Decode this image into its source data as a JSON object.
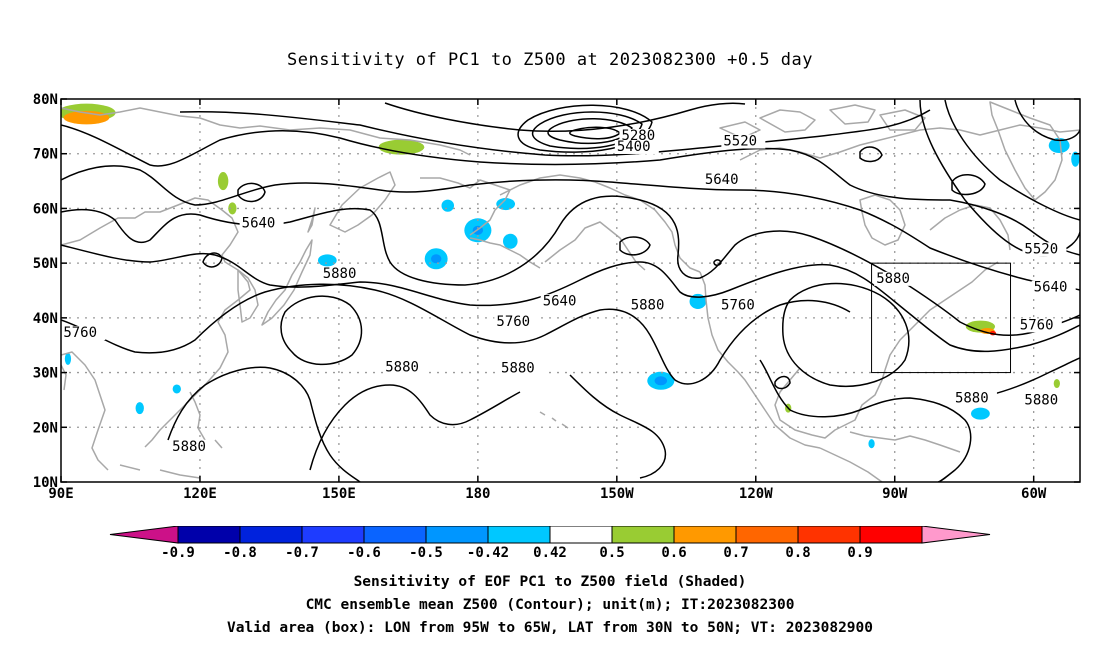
{
  "title": "Sensitivity of PC1 to Z500 at 2023082300 +0.5 day",
  "map": {
    "lon_range": [
      90,
      310
    ],
    "lat_range": [
      10,
      80
    ],
    "lat_ticks": [
      {
        "value": 80,
        "label": "80N"
      },
      {
        "value": 70,
        "label": "70N"
      },
      {
        "value": 60,
        "label": "60N"
      },
      {
        "value": 50,
        "label": "50N"
      },
      {
        "value": 40,
        "label": "40N"
      },
      {
        "value": 30,
        "label": "30N"
      },
      {
        "value": 20,
        "label": "20N"
      },
      {
        "value": 10,
        "label": "10N"
      }
    ],
    "lon_ticks": [
      {
        "value": 90,
        "label": "90E"
      },
      {
        "value": 120,
        "label": "120E"
      },
      {
        "value": 150,
        "label": "150E"
      },
      {
        "value": 180,
        "label": "180"
      },
      {
        "value": 210,
        "label": "150W"
      },
      {
        "value": 240,
        "label": "120W"
      },
      {
        "value": 270,
        "label": "90W"
      },
      {
        "value": 300,
        "label": "60W"
      }
    ],
    "valid_box": {
      "lon_min": 265,
      "lon_max": 295,
      "lat_min": 30,
      "lat_max": 50
    },
    "colors": {
      "contour": "#000000",
      "coast": "#a8a8a8",
      "grid": "#9a9a9a",
      "green": "#99cc33",
      "orange": "#ff9900",
      "light_blue": "#00c8ff",
      "mid_blue": "#0096ff",
      "red": "#ff1a00"
    },
    "contour_labels": [
      {
        "text": "5280",
        "lon": 211,
        "lat": 72.5
      },
      {
        "text": "5400",
        "lon": 210,
        "lat": 70.5
      },
      {
        "text": "5520",
        "lon": 233,
        "lat": 71.5
      },
      {
        "text": "5640",
        "lon": 229,
        "lat": 64.5
      },
      {
        "text": "5640",
        "lon": 129,
        "lat": 56.5
      },
      {
        "text": "5880",
        "lon": 146.5,
        "lat": 47.3
      },
      {
        "text": "5640",
        "lon": 194,
        "lat": 42.3
      },
      {
        "text": "5880",
        "lon": 213,
        "lat": 41.5
      },
      {
        "text": "5760",
        "lon": 232.5,
        "lat": 41.5
      },
      {
        "text": "5760",
        "lon": 90.5,
        "lat": 36.5
      },
      {
        "text": "5760",
        "lon": 184,
        "lat": 38.5
      },
      {
        "text": "5880",
        "lon": 160,
        "lat": 30.2
      },
      {
        "text": "5880",
        "lon": 185,
        "lat": 30.0
      },
      {
        "text": "5880",
        "lon": 266,
        "lat": 46.4
      },
      {
        "text": "5520",
        "lon": 298,
        "lat": 51.8
      },
      {
        "text": "5640",
        "lon": 300,
        "lat": 44.8
      },
      {
        "text": "5760",
        "lon": 297,
        "lat": 37.9
      },
      {
        "text": "5880",
        "lon": 283,
        "lat": 24.5
      },
      {
        "text": "5880",
        "lon": 298,
        "lat": 24.2
      },
      {
        "text": "5880",
        "lon": 114,
        "lat": 15.7
      }
    ],
    "shaded_patches": [
      {
        "level": "green",
        "lon": 95.5,
        "lat": 77.5,
        "rx": 28,
        "ry": 6
      },
      {
        "level": "orange",
        "lon": 95.5,
        "lat": 76.6,
        "rx": 22,
        "ry": 4.5
      },
      {
        "level": "green",
        "lon": 163.5,
        "lat": 71.2,
        "rx": 22,
        "ry": 5
      },
      {
        "level": "green",
        "lon": 125,
        "lat": 65,
        "rx": 5,
        "ry": 6
      },
      {
        "level": "green",
        "lon": 127,
        "lat": 60,
        "rx": 4,
        "ry": 4
      },
      {
        "level": "light_blue",
        "lon": 173.5,
        "lat": 60.5,
        "rx": 6,
        "ry": 4
      },
      {
        "level": "light_blue",
        "lon": 171,
        "lat": 50.8,
        "rx": 11,
        "ry": 7
      },
      {
        "level": "mid_blue",
        "lon": 171,
        "lat": 50.8,
        "rx": 5,
        "ry": 3
      },
      {
        "level": "light_blue",
        "lon": 180,
        "lat": 56,
        "rx": 13,
        "ry": 8
      },
      {
        "level": "mid_blue",
        "lon": 180,
        "lat": 56,
        "rx": 5,
        "ry": 3
      },
      {
        "level": "light_blue",
        "lon": 186,
        "lat": 60.8,
        "rx": 9,
        "ry": 4
      },
      {
        "level": "light_blue",
        "lon": 187,
        "lat": 54,
        "rx": 7,
        "ry": 5
      },
      {
        "level": "light_blue",
        "lon": 147.5,
        "lat": 50.5,
        "rx": 9,
        "ry": 4
      },
      {
        "level": "light_blue",
        "lon": 227.5,
        "lat": 43,
        "rx": 8,
        "ry": 5
      },
      {
        "level": "light_blue",
        "lon": 219.5,
        "lat": 28.5,
        "rx": 13,
        "ry": 6
      },
      {
        "level": "mid_blue",
        "lon": 219.5,
        "lat": 28.5,
        "rx": 6,
        "ry": 3
      },
      {
        "level": "light_blue",
        "lon": 115,
        "lat": 27,
        "rx": 4,
        "ry": 3
      },
      {
        "level": "light_blue",
        "lon": 107,
        "lat": 23.5,
        "rx": 4,
        "ry": 4
      },
      {
        "level": "light_blue",
        "lon": 91.5,
        "lat": 32.5,
        "rx": 3,
        "ry": 4
      },
      {
        "level": "green",
        "lon": 288.5,
        "lat": 38.4,
        "rx": 14,
        "ry": 4
      },
      {
        "level": "orange",
        "lon": 290,
        "lat": 37.6,
        "rx": 7,
        "ry": 2
      },
      {
        "level": "red",
        "lon": 291.2,
        "lat": 37.2,
        "rx": 3,
        "ry": 1.5
      },
      {
        "level": "light_blue",
        "lon": 288.5,
        "lat": 22.5,
        "rx": 9,
        "ry": 4
      },
      {
        "level": "light_blue",
        "lon": 305.5,
        "lat": 71.5,
        "rx": 10,
        "ry": 5
      },
      {
        "level": "light_blue",
        "lon": 309,
        "lat": 69,
        "rx": 4,
        "ry": 5
      },
      {
        "level": "green",
        "lon": 247,
        "lat": 23.5,
        "rx": 3,
        "ry": 3
      },
      {
        "level": "green",
        "lon": 305,
        "lat": 28,
        "rx": 3,
        "ry": 3
      },
      {
        "level": "light_blue",
        "lon": 265,
        "lat": 17,
        "rx": 3,
        "ry": 3
      }
    ]
  },
  "colorbar": {
    "labels": [
      "-0.9",
      "-0.8",
      "-0.7",
      "-0.6",
      "-0.5",
      "-0.42",
      "0.42",
      "0.5",
      "0.6",
      "0.7",
      "0.8",
      "0.9"
    ],
    "colors": [
      "#0000aa",
      "#0022dd",
      "#1e3cff",
      "#0a64ff",
      "#0096ff",
      "#00c8ff",
      "#ffffff",
      "#99cc33",
      "#ff9900",
      "#ff6600",
      "#ff3300",
      "#ff0000"
    ],
    "low_end_color": "#cc1188",
    "high_end_color": "#ff99cc"
  },
  "footer": {
    "line1": "Sensitivity of EOF PC1 to Z500 field (Shaded)",
    "line2": "CMC ensemble mean Z500 (Contour); unit(m); IT:2023082300",
    "line3": "Valid area (box): LON from 95W to 65W, LAT from 30N to 50N; VT: 2023082900"
  }
}
